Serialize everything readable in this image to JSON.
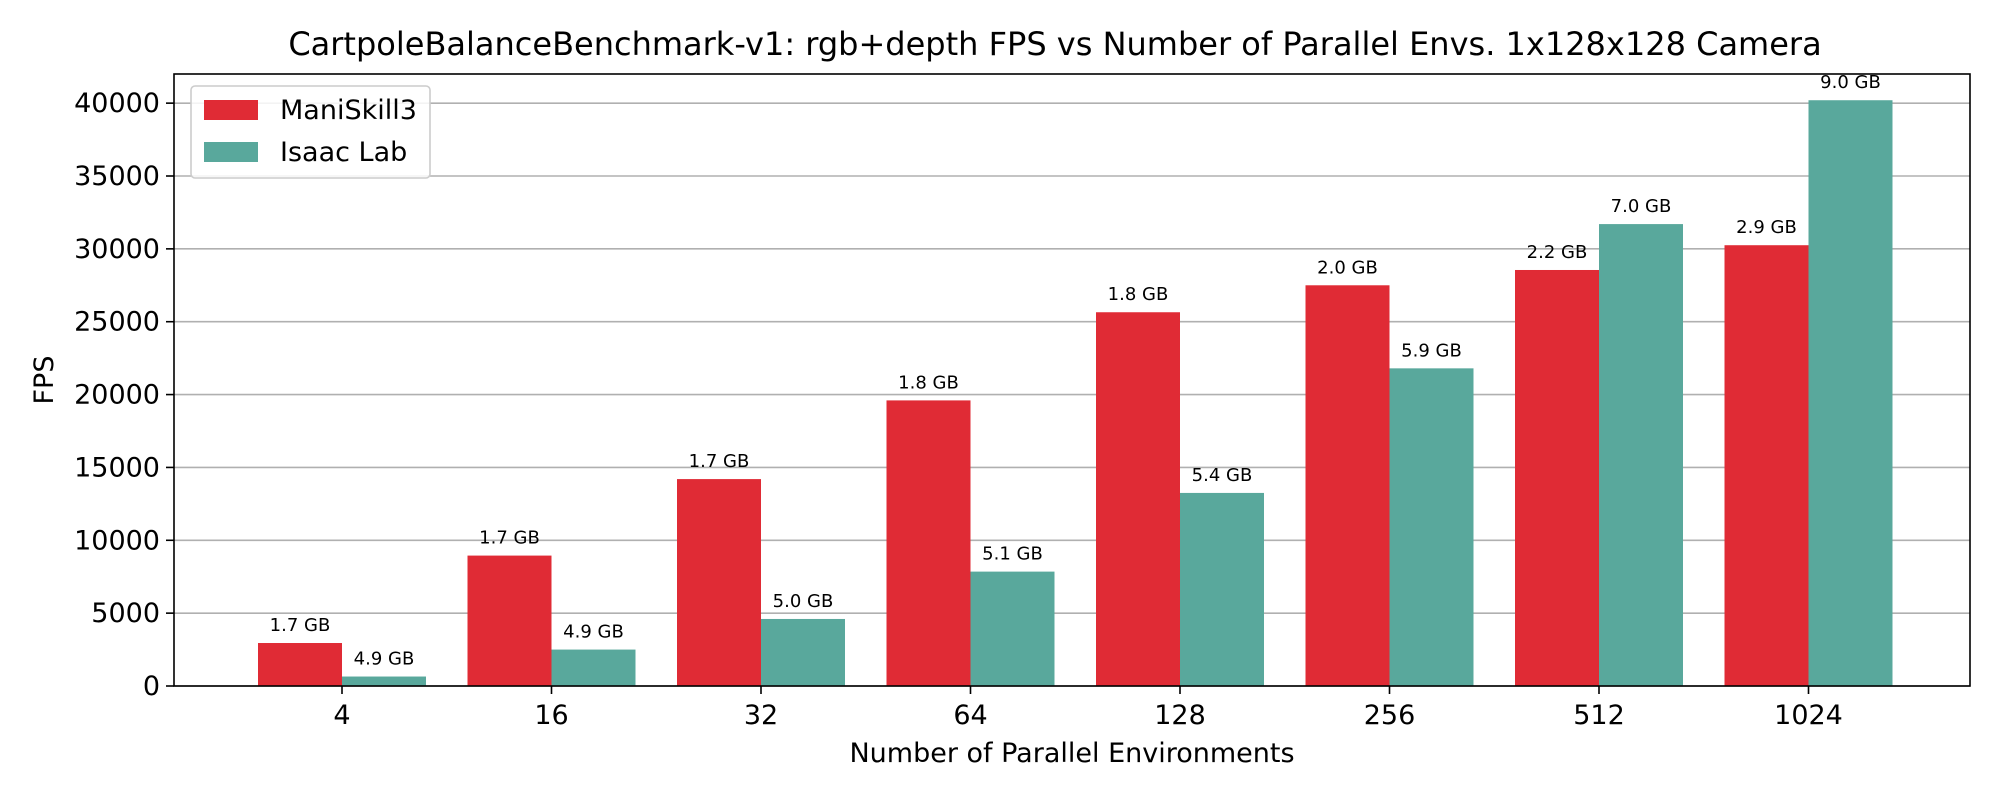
{
  "chart_data": {
    "type": "bar",
    "title": "CartpoleBalanceBenchmark-v1: rgb+depth FPS vs Number of Parallel Envs. 1x128x128 Camera",
    "xlabel": "Number of Parallel Environments",
    "ylabel": "FPS",
    "categories": [
      "4",
      "16",
      "32",
      "64",
      "128",
      "256",
      "512",
      "1024"
    ],
    "ylim": [
      0,
      42000
    ],
    "yticks": [
      0,
      5000,
      10000,
      15000,
      20000,
      25000,
      30000,
      35000,
      40000
    ],
    "grid": true,
    "legend_position": "top-left",
    "series": [
      {
        "name": "ManiSkill3",
        "color": "#e02b35",
        "values": [
          2950,
          8950,
          14200,
          19600,
          25650,
          27500,
          28550,
          30250
        ],
        "labels": [
          "1.7 GB",
          "1.7 GB",
          "1.7 GB",
          "1.8 GB",
          "1.8 GB",
          "2.0 GB",
          "2.2 GB",
          "2.9 GB"
        ]
      },
      {
        "name": "Isaac Lab",
        "color": "#59a89c",
        "values": [
          650,
          2500,
          4600,
          7850,
          13250,
          21800,
          31700,
          40200
        ],
        "labels": [
          "4.9 GB",
          "4.9 GB",
          "5.0 GB",
          "5.1 GB",
          "5.4 GB",
          "5.9 GB",
          "7.0 GB",
          "9.0 GB"
        ]
      }
    ]
  }
}
